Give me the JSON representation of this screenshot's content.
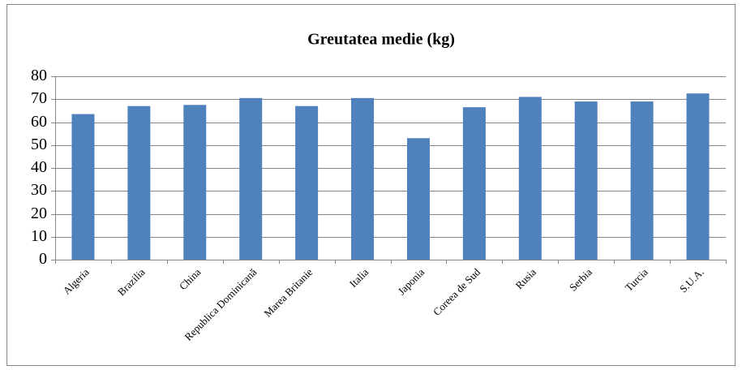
{
  "chart_data": {
    "type": "bar",
    "title": "Greutatea medie (kg)",
    "categories": [
      "Algeria",
      "Brazilia",
      "China",
      "Republica Dominicană",
      "Marea Britanie",
      "Italia",
      "Japonia",
      "Coreea de Sud",
      "Rusia",
      "Serbia",
      "Turcia",
      "S.U.A."
    ],
    "values": [
      63.5,
      67,
      67.5,
      70.5,
      67,
      70.5,
      53,
      66.5,
      71,
      69,
      69,
      72.5
    ],
    "color": "#4f81bd",
    "ylim": [
      0,
      80
    ],
    "yticks": [
      0,
      10,
      20,
      30,
      40,
      50,
      60,
      70,
      80
    ],
    "grid": true
  }
}
